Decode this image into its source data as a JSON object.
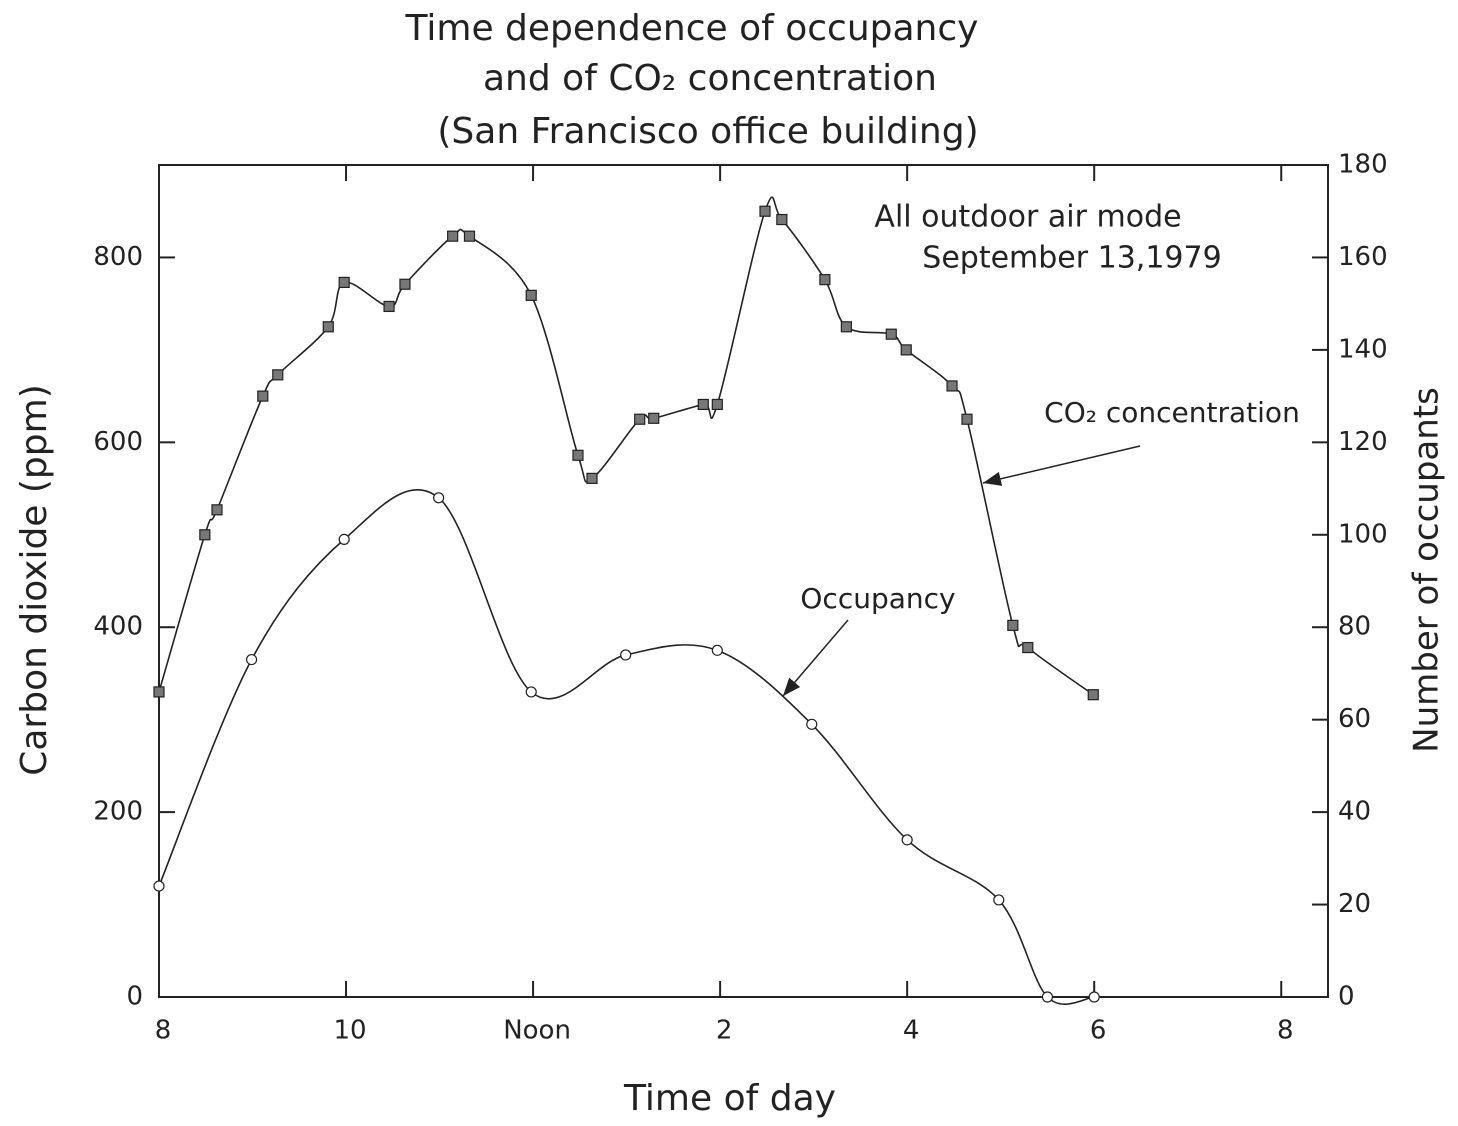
{
  "chart_data": {
    "type": "line",
    "title": [
      "Time dependence of occupancy",
      "and of CO₂ concentration",
      "(San Francisco office building)"
    ],
    "xlabel": "Time of day",
    "ylabel": "Carbon dioxide (ppm)",
    "y2label": "Number of occupants",
    "annotations": [
      "All outdoor air mode",
      "September 13,1979"
    ],
    "xlim": [
      8,
      20.5
    ],
    "xticks": [
      8,
      10,
      {
        "value": 12,
        "label": "Noon"
      },
      {
        "value": 14,
        "label": "2"
      },
      {
        "value": 16,
        "label": "4"
      },
      {
        "value": 18,
        "label": "6"
      },
      {
        "value": 20,
        "label": "8"
      }
    ],
    "ylim": [
      0,
      900
    ],
    "yticks": [
      0,
      200,
      400,
      600,
      800
    ],
    "y2lim": [
      0,
      180
    ],
    "y2ticks": [
      0,
      20,
      40,
      60,
      80,
      100,
      120,
      140,
      160,
      180
    ],
    "series": [
      {
        "name": "CO₂ concentration",
        "color": "#222222",
        "marker": "square",
        "x": [
          8.0,
          8.49,
          8.62,
          9.11,
          9.27,
          9.81,
          9.98,
          10.46,
          10.63,
          11.14,
          11.32,
          11.98,
          12.48,
          12.63,
          13.14,
          13.29,
          13.82,
          13.97,
          14.48,
          14.66,
          15.12,
          15.35,
          15.83,
          15.99,
          16.48,
          16.64,
          17.13,
          17.29,
          17.99
        ],
        "values": [
          330,
          500,
          527,
          650,
          673,
          725,
          773,
          747,
          771,
          823,
          823,
          759,
          586,
          561,
          625,
          626,
          641,
          641,
          850,
          841,
          776,
          725,
          717,
          700,
          661,
          625,
          402,
          378,
          327
        ]
      },
      {
        "name": "Occupancy",
        "color": "#222222",
        "marker": "circle",
        "axis": "y2",
        "x": [
          8.0,
          8.99,
          9.98,
          10.99,
          11.98,
          12.99,
          13.97,
          14.98,
          16.0,
          16.98,
          17.5,
          18.0
        ],
        "values": [
          24,
          73,
          99,
          108,
          66,
          74,
          75,
          59,
          34,
          21,
          0,
          0
        ]
      }
    ]
  }
}
